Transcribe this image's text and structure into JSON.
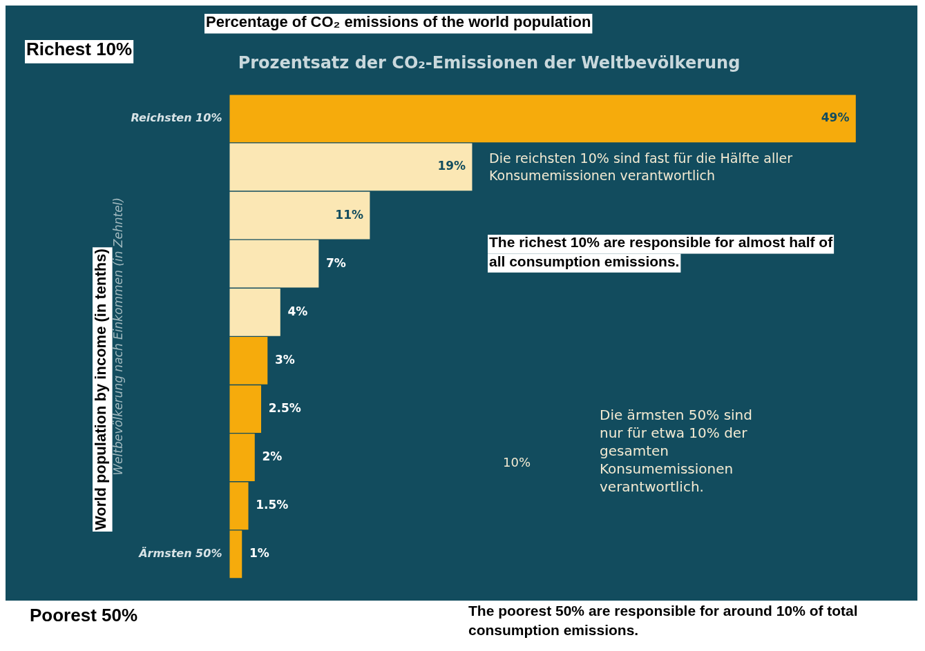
{
  "chart_data": {
    "type": "bar",
    "orientation": "horizontal",
    "title": "Prozentsatz der CO₂-Emissionen der Weltbevölkerung",
    "ylabel": "Weltbevölkerung nach Einkommen (in Zehntel)",
    "categories": [
      "Reichsten 10%",
      null,
      null,
      null,
      null,
      null,
      null,
      null,
      null,
      "Ärmsten 50%"
    ],
    "values": [
      49,
      19,
      11,
      7,
      4,
      3,
      2.5,
      2,
      1.5,
      1
    ],
    "colors": [
      "#f6ab0c",
      "#fbe7b4",
      "#fbe7b4",
      "#fbe7b4",
      "#fbe7b4",
      "#f6ab0c",
      "#f6ab0c",
      "#f6ab0c",
      "#f6ab0c",
      "#f6ab0c"
    ],
    "value_labels": [
      "49%",
      "19%",
      "11%",
      "7%",
      "4%",
      "3%",
      "2.5%",
      "2%",
      "1.5%",
      "1%"
    ],
    "tick_labels": "y",
    "grid": false,
    "legend": false,
    "annotations": [
      "Percentage of CO₂ emissions of the world population",
      "Richest 10%",
      "World population by income (in tenths)",
      "Poorest 50%",
      "Die reichsten 10% sind fast für die Hälfte aller Konsumemissionen verantwortlich",
      "The richest 10% are responsible for almost half of all consumption emissions.",
      "10%",
      "Die ärmsten 50% sind nur für etwa 10% der gesamten Konsumemissionen verantwortlich.",
      "The poorest 50% are responsible for around 10% of total consumption emissions."
    ]
  }
}
